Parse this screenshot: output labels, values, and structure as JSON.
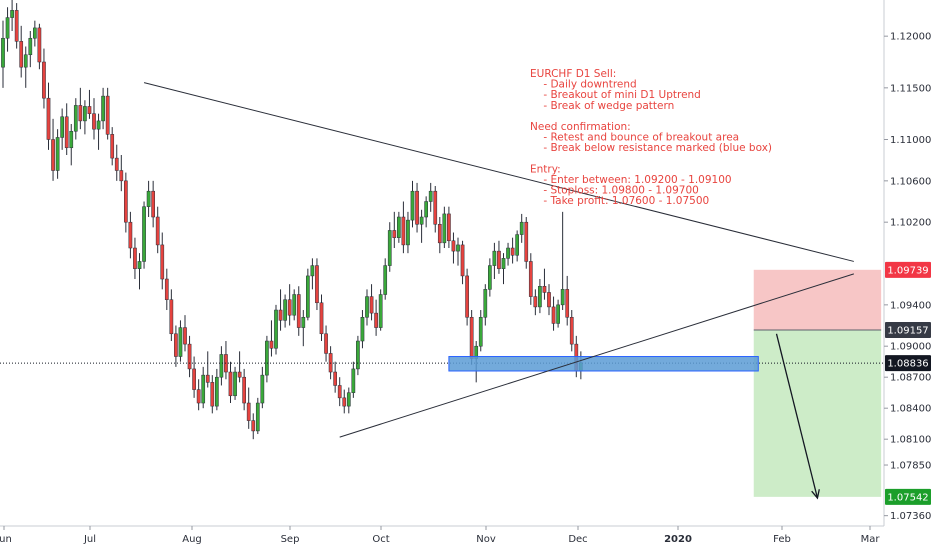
{
  "chart_data": {
    "type": "candlestick",
    "symbol": "EURCHF",
    "timeframe": "D1",
    "y_axis": {
      "range": [
        1.0726,
        1.1235
      ],
      "ticks": [
        "1.12000",
        "1.11500",
        "1.11000",
        "1.10600",
        "1.10200",
        "1.09400",
        "1.09000",
        "1.08700",
        "1.08400",
        "1.08100",
        "1.07850",
        "1.07360"
      ]
    },
    "x_axis": {
      "labels": [
        {
          "text": "Jun",
          "bold": false
        },
        {
          "text": "Jul",
          "bold": false
        },
        {
          "text": "Aug",
          "bold": false
        },
        {
          "text": "Sep",
          "bold": false
        },
        {
          "text": "Oct",
          "bold": false
        },
        {
          "text": "Nov",
          "bold": false
        },
        {
          "text": "Dec",
          "bold": false
        },
        {
          "text": "2020",
          "bold": true
        },
        {
          "text": "Feb",
          "bold": false
        },
        {
          "text": "Mar",
          "bold": false
        }
      ]
    },
    "candles": [
      [
        1.117,
        1.1215,
        1.115,
        1.1198
      ],
      [
        1.1198,
        1.1228,
        1.1185,
        1.1218
      ],
      [
        1.1218,
        1.1235,
        1.1205,
        1.1225
      ],
      [
        1.1225,
        1.1232,
        1.1188,
        1.1195
      ],
      [
        1.1195,
        1.121,
        1.116,
        1.117
      ],
      [
        1.117,
        1.119,
        1.115,
        1.1182
      ],
      [
        1.1182,
        1.1205,
        1.117,
        1.1198
      ],
      [
        1.1198,
        1.1215,
        1.119,
        1.1208
      ],
      [
        1.1208,
        1.1212,
        1.1168,
        1.1175
      ],
      [
        1.1175,
        1.1188,
        1.113,
        1.114
      ],
      [
        1.114,
        1.1155,
        1.109,
        1.11
      ],
      [
        1.11,
        1.112,
        1.106,
        1.107
      ],
      [
        1.107,
        1.111,
        1.1062,
        1.1102
      ],
      [
        1.1102,
        1.113,
        1.109,
        1.1122
      ],
      [
        1.1122,
        1.1135,
        1.1085,
        1.1092
      ],
      [
        1.1092,
        1.1115,
        1.1075,
        1.1108
      ],
      [
        1.1108,
        1.114,
        1.11,
        1.1133
      ],
      [
        1.1133,
        1.115,
        1.111,
        1.1118
      ],
      [
        1.1118,
        1.1138,
        1.1105,
        1.1132
      ],
      [
        1.1132,
        1.1148,
        1.112,
        1.1125
      ],
      [
        1.1125,
        1.114,
        1.11,
        1.111
      ],
      [
        1.111,
        1.1125,
        1.109,
        1.1118
      ],
      [
        1.1118,
        1.115,
        1.111,
        1.1142
      ],
      [
        1.1142,
        1.115,
        1.11,
        1.1105
      ],
      [
        1.1105,
        1.1112,
        1.1075,
        1.1082
      ],
      [
        1.1082,
        1.1095,
        1.106,
        1.107
      ],
      [
        1.107,
        1.1085,
        1.105,
        1.106
      ],
      [
        1.106,
        1.1068,
        1.101,
        1.102
      ],
      [
        1.102,
        1.103,
        1.0985,
        1.0995
      ],
      [
        1.0995,
        1.1005,
        1.0965,
        1.0975
      ],
      [
        1.0975,
        1.099,
        1.0955,
        1.0982
      ],
      [
        1.0982,
        1.104,
        1.0975,
        1.1035
      ],
      [
        1.1035,
        1.106,
        1.1025,
        1.105
      ],
      [
        1.105,
        1.106,
        1.1015,
        1.1025
      ],
      [
        1.1025,
        1.1035,
        1.099,
        1.0998
      ],
      [
        1.0998,
        1.101,
        1.0955,
        1.0965
      ],
      [
        1.0965,
        1.0975,
        1.0935,
        1.0945
      ],
      [
        1.0945,
        1.0955,
        1.0905,
        1.0912
      ],
      [
        1.0912,
        1.092,
        1.088,
        1.089
      ],
      [
        1.089,
        1.0925,
        1.0885,
        1.0918
      ],
      [
        1.0918,
        1.093,
        1.0895,
        1.0902
      ],
      [
        1.0902,
        1.091,
        1.087,
        1.0878
      ],
      [
        1.0878,
        1.089,
        1.085,
        1.0858
      ],
      [
        1.0858,
        1.0868,
        1.0838,
        1.0845
      ],
      [
        1.0845,
        1.088,
        1.084,
        1.0872
      ],
      [
        1.0872,
        1.0895,
        1.086,
        1.0865
      ],
      [
        1.0865,
        1.0872,
        1.0835,
        1.0842
      ],
      [
        1.0842,
        1.0878,
        1.0838,
        1.087
      ],
      [
        1.087,
        1.09,
        1.0862,
        1.0892
      ],
      [
        1.0892,
        1.0905,
        1.0868,
        1.0875
      ],
      [
        1.0875,
        1.0885,
        1.0845,
        1.0852
      ],
      [
        1.0852,
        1.088,
        1.0848,
        1.0875
      ],
      [
        1.0875,
        1.0895,
        1.0865,
        1.087
      ],
      [
        1.087,
        1.0878,
        1.0838,
        1.0845
      ],
      [
        1.0845,
        1.086,
        1.082,
        1.0828
      ],
      [
        1.0828,
        1.0835,
        1.081,
        1.0818
      ],
      [
        1.0818,
        1.085,
        1.0815,
        1.0845
      ],
      [
        1.0845,
        1.088,
        1.084,
        1.0872
      ],
      [
        1.0872,
        1.091,
        1.0865,
        1.0905
      ],
      [
        1.0905,
        1.0925,
        1.089,
        1.0898
      ],
      [
        1.0898,
        1.094,
        1.0892,
        1.0935
      ],
      [
        1.0935,
        1.0955,
        1.0915,
        1.0925
      ],
      [
        1.0925,
        1.095,
        1.0918,
        1.0945
      ],
      [
        1.0945,
        1.096,
        1.092,
        1.093
      ],
      [
        1.093,
        1.0955,
        1.0925,
        1.095
      ],
      [
        1.095,
        1.0958,
        1.091,
        1.0918
      ],
      [
        1.0918,
        1.0935,
        1.09,
        1.0928
      ],
      [
        1.0928,
        1.0975,
        1.0925,
        1.0968
      ],
      [
        1.0968,
        1.0985,
        1.0955,
        1.0978
      ],
      [
        1.0978,
        1.0985,
        1.0935,
        1.0942
      ],
      [
        1.0942,
        1.095,
        1.0905,
        1.0912
      ],
      [
        1.0912,
        1.092,
        1.0885,
        1.0893
      ],
      [
        1.0893,
        1.09,
        1.0868,
        1.0875
      ],
      [
        1.0875,
        1.0885,
        1.0855,
        1.0862
      ],
      [
        1.0862,
        1.087,
        1.0842,
        1.085
      ],
      [
        1.085,
        1.0858,
        1.0835,
        1.0842
      ],
      [
        1.0842,
        1.086,
        1.0835,
        1.0855
      ],
      [
        1.0855,
        1.0885,
        1.085,
        1.0878
      ],
      [
        1.0878,
        1.091,
        1.0872,
        1.0905
      ],
      [
        1.0905,
        1.0935,
        1.0898,
        1.0928
      ],
      [
        1.0928,
        1.0955,
        1.092,
        1.0948
      ],
      [
        1.0948,
        1.096,
        1.0925,
        1.0932
      ],
      [
        1.0932,
        1.0945,
        1.091,
        1.0918
      ],
      [
        1.0918,
        1.0955,
        1.0915,
        1.095
      ],
      [
        1.095,
        1.0985,
        1.0945,
        1.0978
      ],
      [
        1.0978,
        1.102,
        1.0972,
        1.1012
      ],
      [
        1.1012,
        1.103,
        1.0995,
        1.1005
      ],
      [
        1.1005,
        1.103,
        1.1,
        1.1025
      ],
      [
        1.1025,
        1.104,
        1.099,
        1.0998
      ],
      [
        1.0998,
        1.103,
        1.099,
        1.1022
      ],
      [
        1.1022,
        1.106,
        1.1015,
        1.105
      ],
      [
        1.105,
        1.1058,
        1.101,
        1.1018
      ],
      [
        1.1018,
        1.1032,
        1.1,
        1.1025
      ],
      [
        1.1025,
        1.1045,
        1.1015,
        1.104
      ],
      [
        1.104,
        1.1058,
        1.103,
        1.105
      ],
      [
        1.105,
        1.1055,
        1.101,
        1.1018
      ],
      [
        1.1018,
        1.1025,
        1.099,
        1.1
      ],
      [
        1.1,
        1.1035,
        1.0995,
        1.1028
      ],
      [
        1.1028,
        1.1035,
        1.0995,
        1.1002
      ],
      [
        1.1002,
        1.101,
        1.098,
        1.0992
      ],
      [
        1.0992,
        1.1005,
        1.0978,
        1.0998
      ],
      [
        1.0998,
        1.1002,
        1.096,
        1.0968
      ],
      [
        1.0968,
        1.0975,
        1.092,
        1.0928
      ],
      [
        1.0928,
        1.0935,
        1.0882,
        1.0888
      ],
      [
        1.0888,
        1.0905,
        1.0865,
        1.09
      ],
      [
        1.09,
        1.0935,
        1.0895,
        1.0928
      ],
      [
        1.0928,
        1.096,
        1.092,
        1.0955
      ],
      [
        1.0955,
        1.0985,
        1.0948,
        1.0978
      ],
      [
        1.0978,
        1.1,
        1.0965,
        1.0992
      ],
      [
        1.0992,
        1.1002,
        1.097,
        1.0975
      ],
      [
        1.0975,
        1.099,
        1.096,
        1.0985
      ],
      [
        1.0985,
        1.1,
        1.0978,
        1.0995
      ],
      [
        1.0995,
        1.1005,
        1.098,
        1.0988
      ],
      [
        1.0988,
        1.1012,
        1.0982,
        1.1008
      ],
      [
        1.1008,
        1.1028,
        1.1,
        1.102
      ],
      [
        1.102,
        1.1025,
        1.0975,
        1.0982
      ],
      [
        1.0982,
        1.099,
        1.094,
        1.0948
      ],
      [
        1.0948,
        1.0955,
        1.093,
        1.0938
      ],
      [
        1.0938,
        1.0965,
        1.0932,
        1.0958
      ],
      [
        1.0958,
        1.0975,
        1.0945,
        1.0952
      ],
      [
        1.0952,
        1.096,
        1.093,
        1.0938
      ],
      [
        1.0938,
        1.0948,
        1.0915,
        1.0922
      ],
      [
        1.0922,
        1.0945,
        1.0918,
        1.094
      ],
      [
        1.094,
        1.103,
        1.0935,
        1.0955
      ],
      [
        1.0955,
        1.0968,
        1.092,
        1.0928
      ],
      [
        1.0928,
        1.0935,
        1.0895,
        1.0902
      ],
      [
        1.0902,
        1.091,
        1.087,
        1.0876
      ],
      [
        1.0876,
        1.0895,
        1.0868,
        1.0884
      ]
    ],
    "trendlines": [
      {
        "name": "upper-wedge-line",
        "from": {
          "i": 31,
          "p": 1.1155
        },
        "to": {
          "i": 187,
          "p": 1.0982
        }
      },
      {
        "name": "lower-wedge-line",
        "from": {
          "i": 74,
          "p": 1.0812
        },
        "to": {
          "i": 187,
          "p": 1.097
        }
      }
    ],
    "support_zone": {
      "from_i": 98,
      "to_i": 166,
      "top": 1.089,
      "bottom": 1.0876
    },
    "current_price": 1.08836,
    "position": {
      "type": "short",
      "from_i": 165,
      "to_i": 193,
      "entry": 1.09157,
      "stop": 1.09739,
      "target": 1.07542,
      "arrow_from": {
        "i": 170,
        "p": 1.0912
      },
      "arrow_to": {
        "i": 179,
        "p": 1.0753
      }
    },
    "price_labels": [
      {
        "text": "1.09739",
        "kind": "stop"
      },
      {
        "text": "1.09157",
        "kind": "entry"
      },
      {
        "text": "1.08836",
        "kind": "current"
      },
      {
        "text": "1.07542",
        "kind": "target"
      }
    ],
    "colors": {
      "up": "#26a69a",
      "up_candle": "#3aa83a",
      "down": "#e5433f",
      "wick": "#2a2e39",
      "trendline": "#2a2e39",
      "zone_fill": "#5b9bd5",
      "zone_stroke": "#2962ff",
      "stop_zone": "#f7c6c6",
      "profit_zone": "#cdecc8",
      "stop_label": "#f23645",
      "target_label": "#1b9e2a",
      "entry_label": "#363a45",
      "current_label": "#131722",
      "annotation": "#e8443f"
    },
    "annotation": [
      "EURCHF D1 Sell:",
      "    - Daily downtrend",
      "    - Breakout of mini D1 Uptrend",
      "    - Break of wedge pattern",
      "",
      "Need confirmation:",
      "    - Retest and bounce of breakout area",
      "    - Break below resistance marked (blue box)",
      "",
      "Entry:",
      "    - Enter between: 1.09200 - 1.09100",
      "    - Stoploss: 1.09800 - 1.09700",
      "    - Take profit: 1.07600 - 1.07500"
    ]
  }
}
